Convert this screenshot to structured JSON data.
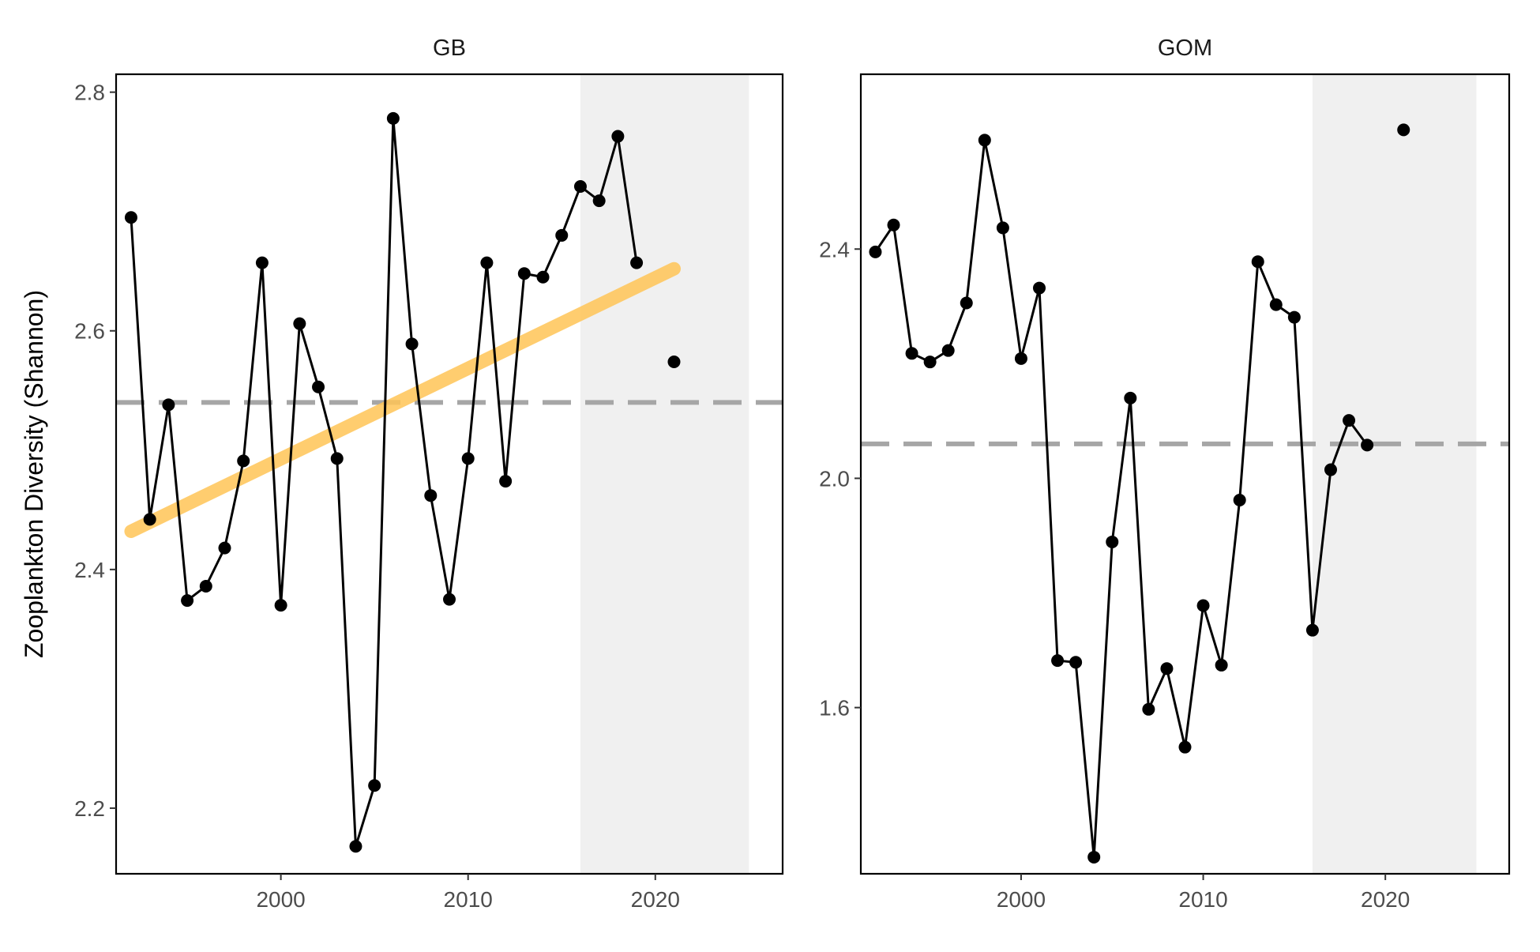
{
  "chart_data": {
    "type": "line",
    "ylabel": "Zooplankton Diversity (Shannon)",
    "xlabel": "",
    "panels": [
      {
        "title": "GB",
        "xlim": [
          1991.2,
          2026.8
        ],
        "ylim": [
          2.145,
          2.815
        ],
        "xticks": [
          2000,
          2010,
          2020
        ],
        "yticks": [
          2.2,
          2.4,
          2.6,
          2.8
        ],
        "ytick_labels": [
          "2.2",
          "2.4",
          "2.6",
          "2.8"
        ],
        "mean_line": 2.54,
        "shaded_region": [
          2016,
          2025
        ],
        "series": [
          {
            "x": [
              1992,
              1993,
              1994,
              1995,
              1996,
              1997,
              1998,
              1999,
              2000,
              2001,
              2002,
              2003,
              2004,
              2005,
              2006,
              2007,
              2008,
              2009,
              2010,
              2011,
              2012,
              2013,
              2014,
              2015,
              2016,
              2017,
              2018,
              2019
            ],
            "y": [
              2.695,
              2.442,
              2.538,
              2.374,
              2.386,
              2.418,
              2.491,
              2.657,
              2.37,
              2.606,
              2.553,
              2.493,
              2.168,
              2.219,
              2.778,
              2.589,
              2.462,
              2.375,
              2.493,
              2.657,
              2.474,
              2.648,
              2.645,
              2.68,
              2.721,
              2.709,
              2.763,
              2.657
            ]
          }
        ],
        "isolated_points": [
          {
            "x": 2021,
            "y": 2.574
          }
        ],
        "trend": {
          "x": [
            1992,
            2021
          ],
          "y": [
            2.432,
            2.652
          ],
          "color": "#ffc456"
        }
      },
      {
        "title": "GOM",
        "xlim": [
          1991.2,
          2026.8
        ],
        "ylim": [
          1.31,
          2.705
        ],
        "xticks": [
          2000,
          2010,
          2020
        ],
        "yticks": [
          1.6,
          2.0,
          2.4
        ],
        "ytick_labels": [
          "1.6",
          "2.0",
          "2.4"
        ],
        "mean_line": 2.06,
        "shaded_region": [
          2016,
          2025
        ],
        "series": [
          {
            "x": [
              1992,
              1993,
              1994,
              1995,
              1996,
              1997,
              1998,
              1999,
              2000,
              2001,
              2002,
              2003,
              2004,
              2005,
              2006,
              2007,
              2008,
              2009,
              2010,
              2011,
              2012,
              2013,
              2014,
              2015,
              2016,
              2017,
              2018,
              2019
            ],
            "y": [
              2.395,
              2.442,
              2.218,
              2.203,
              2.223,
              2.306,
              2.59,
              2.437,
              2.209,
              2.332,
              1.682,
              1.679,
              1.339,
              1.889,
              2.14,
              1.597,
              1.668,
              1.531,
              1.778,
              1.674,
              1.962,
              2.378,
              2.303,
              2.281,
              1.735,
              2.015,
              2.101,
              2.058
            ]
          }
        ],
        "isolated_points": [
          {
            "x": 2021,
            "y": 2.608
          }
        ],
        "trend": null
      }
    ],
    "colors": {
      "line": "#000000",
      "point": "#000000",
      "mean_line": "#a6a6a6",
      "shade": "#f0f0f0",
      "trend": "#ffc456",
      "frame": "#000000"
    },
    "grid": false,
    "legend": "none"
  }
}
